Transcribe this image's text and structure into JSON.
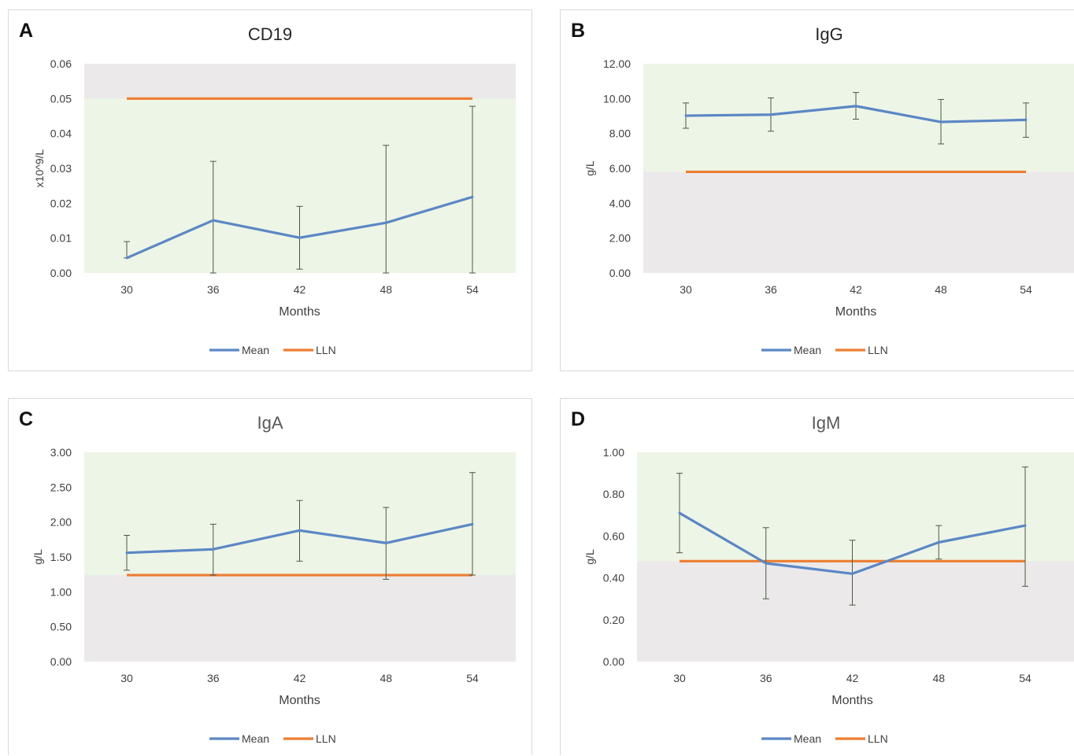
{
  "colors": {
    "mean": "#5b87c5",
    "lln": "#ed7d31",
    "normal_band": "#edf5e6",
    "low_band": "#ebe9ea",
    "errorbar": "#4a5a43"
  },
  "legend": {
    "mean": "Mean",
    "lln": "LLN"
  },
  "chart_data": [
    {
      "panel": "A",
      "type": "line",
      "title": "CD19",
      "title_gray": false,
      "xlabel": "Months",
      "ylabel": "x10^9/L",
      "categories": [
        "30",
        "36",
        "42",
        "48",
        "54"
      ],
      "yticks": [
        "0.00",
        "0.01",
        "0.02",
        "0.03",
        "0.04",
        "0.05",
        "0.06"
      ],
      "ylim": [
        0,
        0.06
      ],
      "band_split": 0.05,
      "band_above": "low",
      "band_below": "normal",
      "series": [
        {
          "name": "Mean",
          "values": [
            0.0043,
            0.0151,
            0.0101,
            0.0144,
            0.0218
          ],
          "error_low": [
            0.0,
            0.0151,
            0.009,
            0.0144,
            0.0218
          ],
          "error_high": [
            0.0047,
            0.0169,
            0.009,
            0.0222,
            0.026
          ]
        },
        {
          "name": "LLN",
          "values": [
            0.05,
            0.05,
            0.05,
            0.05,
            0.05
          ]
        }
      ]
    },
    {
      "panel": "B",
      "type": "line",
      "title": "IgG",
      "title_gray": false,
      "xlabel": "Months",
      "ylabel": "g/L",
      "categories": [
        "30",
        "36",
        "42",
        "48",
        "54"
      ],
      "yticks": [
        "0.00",
        "2.00",
        "4.00",
        "6.00",
        "8.00",
        "10.00",
        "12.00"
      ],
      "ylim": [
        0,
        12
      ],
      "band_split": 5.8,
      "band_above": "normal",
      "band_below": "low",
      "series": [
        {
          "name": "Mean",
          "values": [
            9.02,
            9.08,
            9.57,
            8.66,
            8.78
          ],
          "error_low": [
            0.72,
            0.95,
            0.75,
            1.26,
            1.0
          ],
          "error_high": [
            0.73,
            0.96,
            0.78,
            1.29,
            0.97
          ]
        },
        {
          "name": "LLN",
          "values": [
            5.8,
            5.8,
            5.8,
            5.8,
            5.8
          ]
        }
      ]
    },
    {
      "panel": "C",
      "type": "line",
      "title": "IgA",
      "title_gray": true,
      "xlabel": "Months",
      "ylabel": "g/L",
      "categories": [
        "30",
        "36",
        "42",
        "48",
        "54"
      ],
      "yticks": [
        "0.00",
        "0.50",
        "1.00",
        "1.50",
        "2.00",
        "2.50",
        "3.00"
      ],
      "ylim": [
        0,
        3
      ],
      "band_split": 1.24,
      "band_above": "normal",
      "band_below": "low",
      "series": [
        {
          "name": "Mean",
          "values": [
            1.56,
            1.61,
            1.88,
            1.7,
            1.97
          ],
          "error_low": [
            0.25,
            0.37,
            0.44,
            0.52,
            0.73
          ],
          "error_high": [
            0.25,
            0.36,
            0.43,
            0.51,
            0.74
          ]
        },
        {
          "name": "LLN",
          "values": [
            1.24,
            1.24,
            1.24,
            1.24,
            1.24
          ]
        }
      ]
    },
    {
      "panel": "D",
      "type": "line",
      "title": "IgM",
      "title_gray": true,
      "xlabel": "Months",
      "ylabel": "g/L",
      "categories": [
        "30",
        "36",
        "42",
        "48",
        "54"
      ],
      "yticks": [
        "0.00",
        "0.20",
        "0.40",
        "0.60",
        "0.80",
        "1.00"
      ],
      "ylim": [
        0,
        1
      ],
      "band_split": 0.48,
      "band_above": "normal",
      "band_below": "low",
      "series": [
        {
          "name": "Mean",
          "values": [
            0.71,
            0.47,
            0.42,
            0.57,
            0.65
          ],
          "error_low": [
            0.19,
            0.17,
            0.15,
            0.08,
            0.29
          ],
          "error_high": [
            0.19,
            0.17,
            0.16,
            0.08,
            0.28
          ]
        },
        {
          "name": "LLN",
          "values": [
            0.48,
            0.48,
            0.48,
            0.48,
            0.48
          ]
        }
      ]
    }
  ]
}
